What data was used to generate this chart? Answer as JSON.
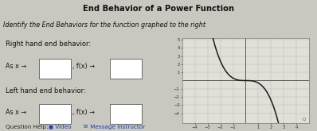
{
  "title": "End Behavior of a Power Function",
  "subtitle": "Identify the End Behaviors for the function graphed to the right",
  "right_behavior_label": "Right hand end behavior:",
  "right_as_x": "As x →",
  "right_fx": ", f(x) →",
  "left_behavior_label": "Left hand end behavior:",
  "left_as_x": "As x →",
  "left_fx": ", f(x) →",
  "question_help": "Question Help:",
  "video_text": " Video",
  "message_text": " Message instructor",
  "graph_xlim": [
    -5,
    5
  ],
  "graph_ylim": [
    -5.2,
    5.2
  ],
  "graph_xticks": [
    -4,
    -3,
    -2,
    -1,
    1,
    2,
    3,
    4
  ],
  "graph_yticks": [
    -4,
    -3,
    -2,
    -1,
    1,
    2,
    3,
    4,
    5
  ],
  "curve_color": "#1a1a1a",
  "grid_color": "#bbbbbb",
  "title_bg": "#d8d8d8",
  "subtitle_bg": "#e8e6e2",
  "left_panel_bg": "#ffffff",
  "right_panel_bg": "#d8d8d0",
  "graph_bg": "#e0e0d8",
  "outer_bg": "#c8c8c0",
  "title_color": "#111111",
  "subtitle_color": "#111111",
  "box_facecolor": "#ffffff",
  "box_edgecolor": "#555555",
  "question_color": "#222222",
  "link_color": "#1a3eaa"
}
